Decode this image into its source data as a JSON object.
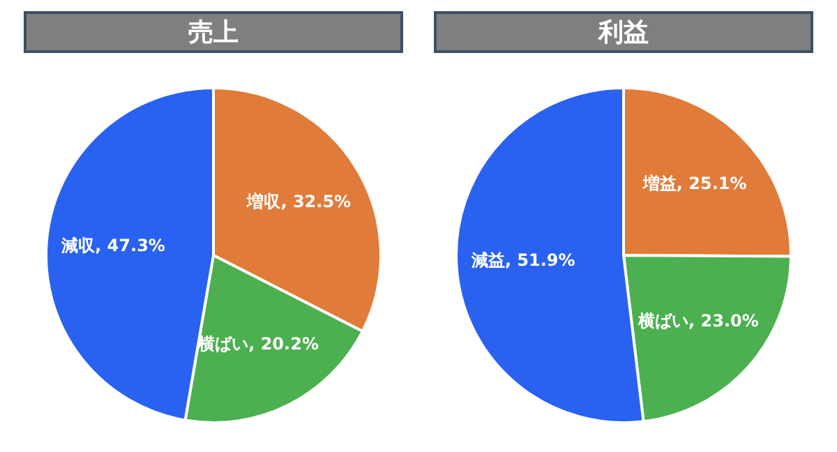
{
  "chart_data": [
    {
      "type": "pie",
      "title": "売上",
      "categories": [
        "増収",
        "横ばい",
        "減収"
      ],
      "values": [
        32.5,
        20.2,
        47.3
      ],
      "colors": [
        "#e07b39",
        "#4caf50",
        "#2962f0"
      ],
      "value_labels": [
        "32.5%",
        "20.2%",
        "47.3%"
      ],
      "legend": false
    },
    {
      "type": "pie",
      "title": "利益",
      "categories": [
        "増益",
        "横ばい",
        "減益"
      ],
      "values": [
        25.1,
        23.0,
        51.9
      ],
      "colors": [
        "#e07b39",
        "#4caf50",
        "#2962f0"
      ],
      "value_labels": [
        "25.1%",
        "23.0%",
        "51.9%"
      ],
      "legend": false
    }
  ]
}
